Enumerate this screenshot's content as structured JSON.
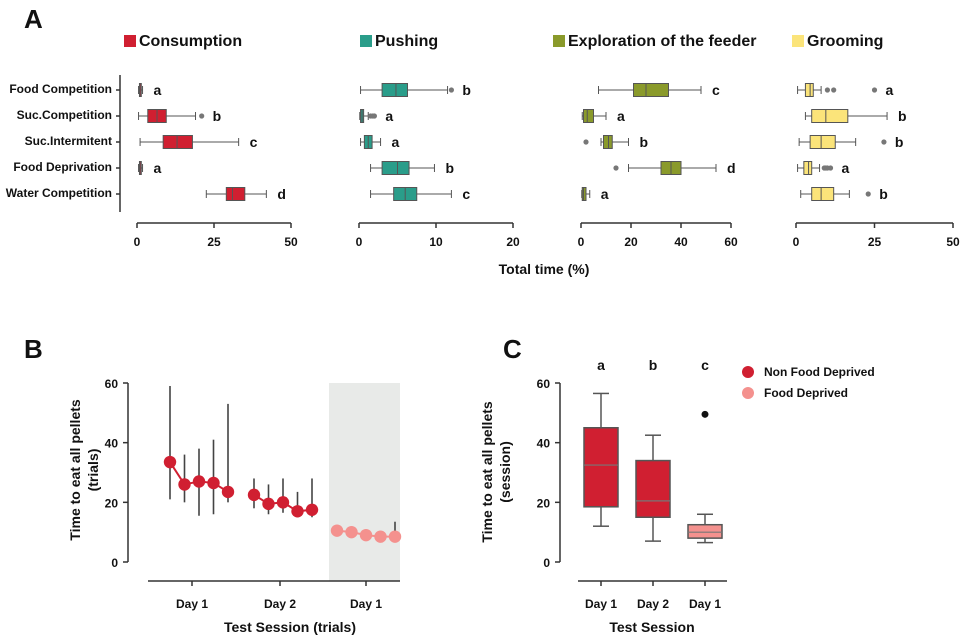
{
  "colors": {
    "consumption": "#d01f31",
    "pushing": "#2a9d8a",
    "exploration": "#8a9a2b",
    "grooming": "#fbe47a",
    "non_food_deprived": "#d01f31",
    "food_deprived": "#f4918e",
    "shade": "#e8eae8",
    "axis": "#333333"
  },
  "chart_data": [
    {
      "panel": "A",
      "type": "box",
      "orientation": "horizontal",
      "xlabel": "Total time (%)",
      "categories": [
        "Food Competition",
        "Suc.Competition",
        "Suc.Intermitent",
        "Food Deprivation",
        "Water Competition"
      ],
      "series": [
        {
          "name": "Consumption",
          "color_key": "consumption",
          "xlim": [
            0,
            50
          ],
          "ticks": [
            0,
            25,
            50
          ],
          "boxes": [
            {
              "min": 0.5,
              "q1": 0.8,
              "median": 1.0,
              "q3": 1.4,
              "max": 1.8,
              "outliers": [],
              "letter": "a"
            },
            {
              "min": 0.5,
              "q1": 3.5,
              "median": 6.5,
              "q3": 9.5,
              "max": 19,
              "outliers": [
                21
              ],
              "letter": "b"
            },
            {
              "min": 1,
              "q1": 8.5,
              "median": 13,
              "q3": 18,
              "max": 33,
              "outliers": [],
              "letter": "c"
            },
            {
              "min": 0.5,
              "q1": 0.8,
              "median": 1.0,
              "q3": 1.4,
              "max": 1.8,
              "outliers": [],
              "letter": "a"
            },
            {
              "min": 22.5,
              "q1": 29,
              "median": 31,
              "q3": 35,
              "max": 42,
              "outliers": [],
              "letter": "d"
            }
          ]
        },
        {
          "name": "Pushing",
          "color_key": "pushing",
          "xlim": [
            0,
            20
          ],
          "ticks": [
            0,
            10,
            20
          ],
          "boxes": [
            {
              "min": 0.2,
              "q1": 3,
              "median": 4.8,
              "q3": 6.3,
              "max": 11.5,
              "outliers": [
                12
              ],
              "letter": "b"
            },
            {
              "min": 0.1,
              "q1": 0.2,
              "median": 0.4,
              "q3": 0.6,
              "max": 1.2,
              "outliers": [
                1.5,
                1.8,
                2
              ],
              "letter": "a"
            },
            {
              "min": 0.2,
              "q1": 0.7,
              "median": 1.2,
              "q3": 1.7,
              "max": 2.8,
              "outliers": [],
              "letter": "a"
            },
            {
              "min": 1.5,
              "q1": 3,
              "median": 5,
              "q3": 6.5,
              "max": 9.8,
              "outliers": [],
              "letter": "b"
            },
            {
              "min": 1.5,
              "q1": 4.5,
              "median": 6,
              "q3": 7.5,
              "max": 12,
              "outliers": [],
              "letter": "c"
            }
          ]
        },
        {
          "name": "Exploration of the feeder",
          "color_key": "exploration",
          "xlim": [
            0,
            60
          ],
          "ticks": [
            0,
            20,
            40,
            60
          ],
          "boxes": [
            {
              "min": 7,
              "q1": 21,
              "median": 26,
              "q3": 35,
              "max": 48,
              "outliers": [],
              "letter": "c"
            },
            {
              "min": 0.5,
              "q1": 1,
              "median": 2.5,
              "q3": 5,
              "max": 10,
              "outliers": [],
              "letter": "a"
            },
            {
              "min": 8,
              "q1": 9,
              "median": 11,
              "q3": 12.5,
              "max": 19,
              "outliers": [
                2
              ],
              "letter": "b"
            },
            {
              "min": 19,
              "q1": 32,
              "median": 36,
              "q3": 40,
              "max": 54,
              "outliers": [
                14
              ],
              "letter": "d"
            },
            {
              "min": 0.3,
              "q1": 0.5,
              "median": 1,
              "q3": 2,
              "max": 3.5,
              "outliers": [],
              "letter": "a"
            }
          ]
        },
        {
          "name": "Grooming",
          "color_key": "grooming",
          "xlim": [
            0,
            50
          ],
          "ticks": [
            0,
            25,
            50
          ],
          "boxes": [
            {
              "min": 0.5,
              "q1": 3,
              "median": 4.5,
              "q3": 5.5,
              "max": 8,
              "outliers": [
                10,
                12,
                25
              ],
              "letter": "a"
            },
            {
              "min": 3,
              "q1": 5,
              "median": 9.5,
              "q3": 16.5,
              "max": 29,
              "outliers": [],
              "letter": "b"
            },
            {
              "min": 1,
              "q1": 4.5,
              "median": 8,
              "q3": 12.5,
              "max": 19,
              "outliers": [
                28
              ],
              "letter": "b"
            },
            {
              "min": 0.5,
              "q1": 2.5,
              "median": 4,
              "q3": 5,
              "max": 7.5,
              "outliers": [
                9,
                9.5,
                10,
                11
              ],
              "letter": "a"
            },
            {
              "min": 1.5,
              "q1": 5,
              "median": 8,
              "q3": 12,
              "max": 17,
              "outliers": [
                23
              ],
              "letter": "b"
            }
          ]
        }
      ]
    },
    {
      "panel": "B",
      "type": "line",
      "ylabel": "Time to eat all pellets\n(trials)",
      "xlabel": "Test Session (trials)",
      "ylim": [
        0,
        60
      ],
      "yticks": [
        0,
        20,
        40,
        60
      ],
      "group_labels": [
        "Day 1",
        "Day 2",
        "Day 1"
      ],
      "shaded_group": 2,
      "series": [
        {
          "group": 0,
          "color_key": "non_food_deprived",
          "values": [
            33.5,
            26,
            27,
            26.5,
            23.5
          ],
          "err_low": [
            21,
            20,
            15.5,
            16,
            20
          ],
          "err_high": [
            59,
            36,
            38,
            41,
            53
          ]
        },
        {
          "group": 1,
          "color_key": "non_food_deprived",
          "values": [
            22.5,
            19.5,
            20,
            17,
            17.5
          ],
          "err_low": [
            18,
            16,
            16.5,
            15,
            15
          ],
          "err_high": [
            28,
            26,
            28,
            23.5,
            28
          ]
        },
        {
          "group": 2,
          "color_key": "food_deprived",
          "values": [
            10.5,
            10,
            9,
            8.5,
            8.5
          ],
          "err_low": [
            9,
            8.5,
            8,
            7.5,
            7.5
          ],
          "err_high": [
            11.5,
            11,
            10,
            9.5,
            13.5
          ]
        }
      ]
    },
    {
      "panel": "C",
      "type": "box",
      "orientation": "vertical",
      "ylabel": "Time to eat all pellets\n(session)",
      "xlabel": "Test Session",
      "ylim": [
        0,
        60
      ],
      "yticks": [
        0,
        20,
        40,
        60
      ],
      "categories": [
        "Day 1",
        "Day 2",
        "Day 1"
      ],
      "legend": [
        {
          "label": "Non Food Deprived",
          "color_key": "non_food_deprived"
        },
        {
          "label": "Food Deprived",
          "color_key": "food_deprived"
        }
      ],
      "boxes": [
        {
          "min": 12,
          "q1": 18.5,
          "median": 32.5,
          "q3": 45,
          "max": 56.5,
          "outliers": [],
          "letter": "a",
          "color_key": "non_food_deprived"
        },
        {
          "min": 7,
          "q1": 15,
          "median": 20.5,
          "q3": 34,
          "max": 42.5,
          "outliers": [],
          "letter": "b",
          "color_key": "non_food_deprived"
        },
        {
          "min": 6.5,
          "q1": 8,
          "median": 10,
          "q3": 12.5,
          "max": 16,
          "outliers": [
            49.5
          ],
          "letter": "c",
          "color_key": "food_deprived"
        }
      ]
    }
  ]
}
